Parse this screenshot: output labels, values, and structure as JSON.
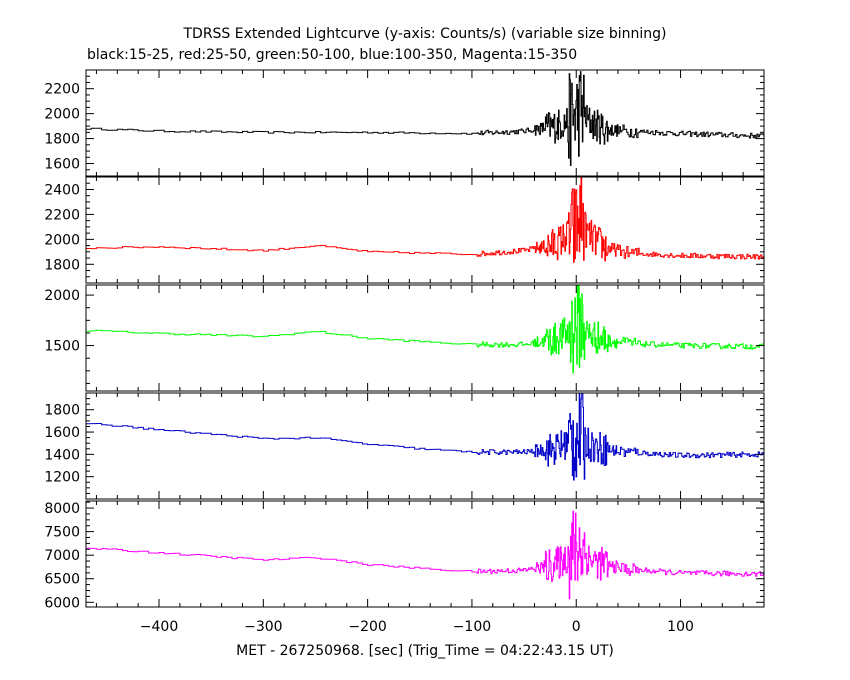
{
  "chart_data": {
    "type": "line",
    "title": "TDRSS Extended Lightcurve (y-axis: Counts/s) (variable size binning)",
    "subtitle": "black:15-25, red:25-50, green:50-100, blue:100-350, Magenta:15-350",
    "xlabel": "MET - 267250968. [sec] (Trig_Time = 04:22:43.15 UT)",
    "xlim": [
      -470,
      180
    ],
    "x_ticks": [
      -400,
      -300,
      -200,
      -100,
      0,
      100
    ],
    "grid": false,
    "panels": [
      {
        "band": "15-25",
        "color": "#000000",
        "ylim": [
          1500,
          2350
        ],
        "y_ticks": [
          1600,
          1800,
          2000,
          2200
        ],
        "series": {
          "x": [
            -470,
            -400,
            -300,
            -200,
            -100,
            -50,
            -20,
            -5,
            0,
            5,
            10,
            20,
            30,
            50,
            100,
            180
          ],
          "y": [
            1880,
            1860,
            1850,
            1850,
            1840,
            1860,
            1900,
            1950,
            2000,
            2050,
            1950,
            1900,
            1870,
            1860,
            1840,
            1820
          ]
        }
      },
      {
        "band": "25-50",
        "color": "#ff0000",
        "ylim": [
          1650,
          2500
        ],
        "y_ticks": [
          1800,
          2000,
          2200,
          2400
        ],
        "series": {
          "x": [
            -470,
            -400,
            -300,
            -250,
            -200,
            -100,
            -50,
            -20,
            -5,
            0,
            5,
            10,
            20,
            30,
            50,
            100,
            180
          ],
          "y": [
            1930,
            1940,
            1910,
            1950,
            1900,
            1880,
            1910,
            1960,
            2050,
            2100,
            2200,
            2050,
            1980,
            1930,
            1890,
            1870,
            1860
          ]
        }
      },
      {
        "band": "50-100",
        "color": "#00ff00",
        "ylim": [
          1050,
          2100
        ],
        "y_ticks": [
          1500,
          2000
        ],
        "series": {
          "x": [
            -470,
            -400,
            -300,
            -250,
            -200,
            -150,
            -100,
            -50,
            -20,
            -5,
            0,
            5,
            10,
            20,
            30,
            50,
            100,
            180
          ],
          "y": [
            1650,
            1620,
            1590,
            1640,
            1570,
            1540,
            1510,
            1510,
            1560,
            1650,
            1700,
            1750,
            1620,
            1580,
            1550,
            1520,
            1500,
            1490
          ]
        }
      },
      {
        "band": "100-350",
        "color": "#0000c8",
        "ylim": [
          1000,
          1950
        ],
        "y_ticks": [
          1200,
          1400,
          1600,
          1800
        ],
        "series": {
          "x": [
            -470,
            -400,
            -300,
            -250,
            -200,
            -150,
            -100,
            -50,
            -20,
            -5,
            0,
            5,
            10,
            20,
            30,
            50,
            100,
            180
          ],
          "y": [
            1680,
            1620,
            1540,
            1550,
            1490,
            1450,
            1420,
            1420,
            1450,
            1520,
            1560,
            1600,
            1500,
            1460,
            1440,
            1420,
            1390,
            1400
          ]
        }
      },
      {
        "band": "15-350",
        "color": "#ff00ff",
        "ylim": [
          5900,
          8150
        ],
        "y_ticks": [
          6000,
          6500,
          7000,
          7500,
          8000
        ],
        "series": {
          "x": [
            -470,
            -400,
            -300,
            -250,
            -200,
            -150,
            -100,
            -50,
            -20,
            -5,
            0,
            5,
            10,
            20,
            30,
            50,
            100,
            180
          ],
          "y": [
            7150,
            7050,
            6900,
            6950,
            6800,
            6720,
            6650,
            6680,
            6800,
            7000,
            7100,
            7200,
            6950,
            6850,
            6780,
            6700,
            6620,
            6600
          ]
        }
      }
    ]
  }
}
